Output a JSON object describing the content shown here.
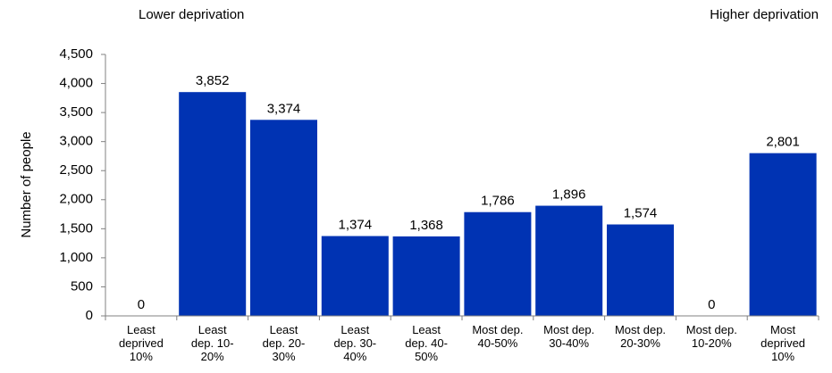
{
  "annotations": {
    "left": "Lower deprivation",
    "right": "Higher deprivation"
  },
  "chart_data": {
    "type": "bar",
    "title": "",
    "xlabel": "",
    "ylabel": "Number of people",
    "ylim": [
      0,
      4500
    ],
    "yticks": [
      "0",
      "500",
      "1,000",
      "1,500",
      "2,000",
      "2,500",
      "3,000",
      "3,500",
      "4,000",
      "4,500"
    ],
    "ytick_values": [
      0,
      500,
      1000,
      1500,
      2000,
      2500,
      3000,
      3500,
      4000,
      4500
    ],
    "categories": [
      [
        "Least",
        "deprived",
        "10%"
      ],
      [
        "Least",
        "dep. 10-",
        "20%"
      ],
      [
        "Least",
        "dep. 20-",
        "30%"
      ],
      [
        "Least",
        "dep. 30-",
        "40%"
      ],
      [
        "Least",
        "dep. 40-",
        "50%"
      ],
      [
        "Most dep.",
        "40-50%"
      ],
      [
        "Most dep.",
        "30-40%"
      ],
      [
        "Most dep.",
        "20-30%"
      ],
      [
        "Most dep.",
        "10-20%"
      ],
      [
        "Most",
        "deprived",
        "10%"
      ]
    ],
    "values": [
      0,
      3852,
      3374,
      1374,
      1368,
      1786,
      1896,
      1574,
      0,
      2801
    ],
    "value_labels": [
      "0",
      "3,852",
      "3,374",
      "1,374",
      "1,368",
      "1,786",
      "1,896",
      "1,574",
      "0",
      "2,801"
    ],
    "bar_color": "#0033b3",
    "grid": false,
    "legend": "none"
  }
}
